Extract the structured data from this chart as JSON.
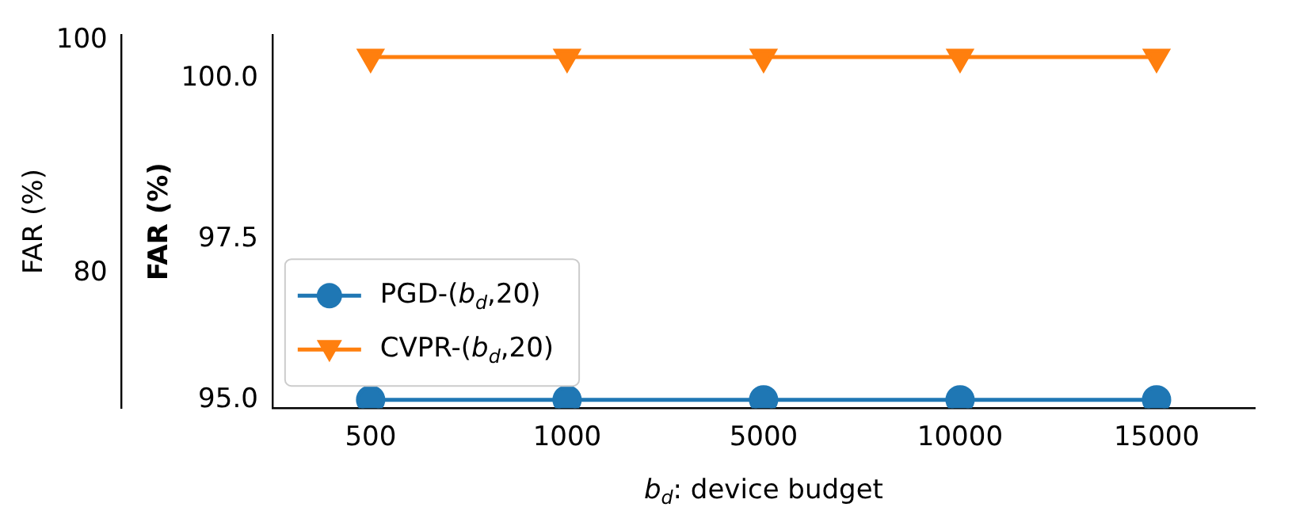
{
  "chart_data": {
    "type": "line",
    "categories": [
      "500",
      "1000",
      "5000",
      "10000",
      "15000"
    ],
    "xlabel": "b$_{d}$: device budget",
    "ylabel": "FAR (%)",
    "y2label": "FAR (%)",
    "series": [
      {
        "name": "PGD-(b$_{d}$,20)",
        "color": "#1f77b4",
        "marker": "circle",
        "values": [
          95.0,
          95.0,
          95.0,
          95.0,
          95.0
        ]
      },
      {
        "name": "CVPR-(b$_{d}$,20)",
        "color": "#ff7f0e",
        "marker": "triangle",
        "axis": "y2",
        "values": [
          98.6,
          98.6,
          98.6,
          98.6,
          98.6
        ]
      }
    ],
    "ylim": [
      94.87,
      100.68
    ],
    "yticks": [
      {
        "value": 95,
        "label": "95.0"
      },
      97.5,
      {
        "value": 100,
        "label": "100.0"
      }
    ],
    "y2lim": [
      68.4,
      100.5
    ],
    "y2ticks": [
      80,
      100
    ],
    "legend": "left",
    "grid": false
  }
}
